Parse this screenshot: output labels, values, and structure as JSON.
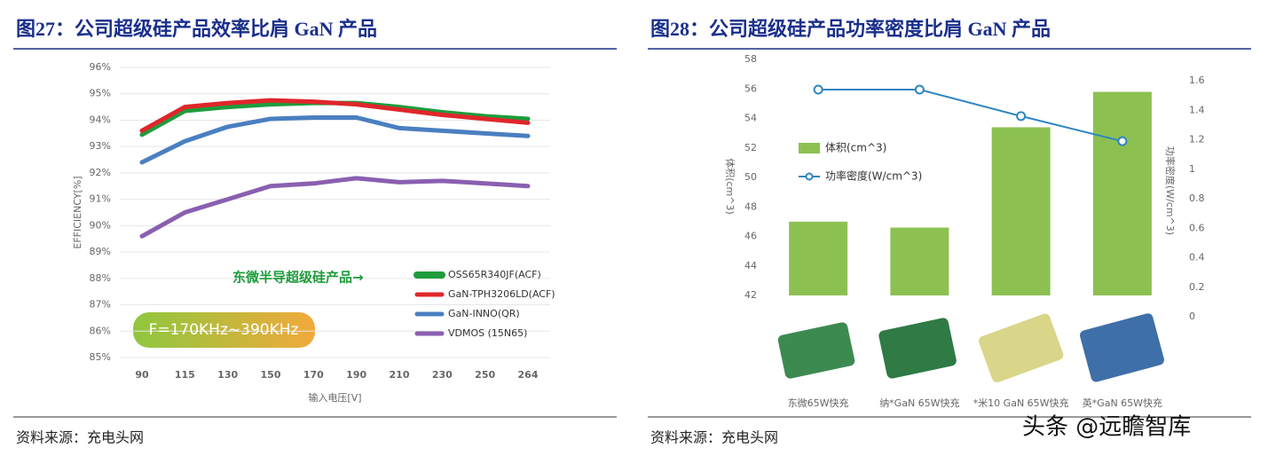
{
  "chart_data": [
    {
      "type": "line",
      "title": "图27：公司超级硅产品效率比肩 GaN 产品",
      "x_label": "输入电压[V]",
      "y_label": "EFFICIENCY[%]",
      "categories": [
        "90",
        "115",
        "130",
        "150",
        "170",
        "190",
        "210",
        "230",
        "250",
        "264"
      ],
      "series": [
        {
          "name": "OSS65R340JF(ACF)",
          "color": "#1e9c3c",
          "values": [
            93.45,
            94.35,
            94.5,
            94.6,
            94.65,
            94.65,
            94.5,
            94.3,
            94.15,
            94.05
          ]
        },
        {
          "name": "GaN-TPH3206LD(ACF)",
          "color": "#e0262b",
          "values": [
            93.6,
            94.5,
            94.65,
            94.75,
            94.7,
            94.6,
            94.4,
            94.2,
            94.05,
            93.9
          ]
        },
        {
          "name": "GaN-INNO(QR)",
          "color": "#4a7fc1",
          "values": [
            92.4,
            93.2,
            93.75,
            94.05,
            94.1,
            94.1,
            93.7,
            93.6,
            93.5,
            93.4
          ]
        },
        {
          "name": "VDMOS (15N65)",
          "color": "#8a5fb0",
          "values": [
            89.6,
            90.5,
            91.0,
            91.5,
            91.6,
            91.8,
            91.65,
            91.7,
            91.6,
            91.5
          ]
        }
      ],
      "ylim": [
        85,
        96
      ],
      "yticks": [
        {
          "value": 85,
          "label": "85%"
        },
        {
          "value": 86,
          "label": "86%"
        },
        {
          "value": 87,
          "label": "87%"
        },
        {
          "value": 88,
          "label": "88%"
        },
        {
          "value": 89,
          "label": "89%"
        },
        {
          "value": 90,
          "label": "90%"
        },
        {
          "value": 91,
          "label": "91%"
        },
        {
          "value": 92,
          "label": "92%"
        },
        {
          "value": 93,
          "label": "93%"
        },
        {
          "value": 94,
          "label": "94%"
        },
        {
          "value": 95,
          "label": "95%"
        },
        {
          "value": 96,
          "label": "96%"
        }
      ],
      "grid": true,
      "annotations": [
        "东微半导超级硅产品→",
        "F=170KHz~390KHz"
      ],
      "source": "资料来源：充电头网"
    },
    {
      "type": "bar",
      "title": "图28：公司超级硅产品功率密度比肩 GaN 产品",
      "y_label": "体积(cm^3)",
      "y2_label": "功率密度(W/cm^3)",
      "categories": [
        "东微65W快充",
        "纳*GaN 65W快充",
        "*米10 GaN 65W快充",
        "英*GaN 65W快充"
      ],
      "series": [
        {
          "name": "体积(cm^3)",
          "color": "#8cc152",
          "values": [
            47,
            46.6,
            53.4,
            55.8
          ]
        },
        {
          "name": "功率密度(W/cm^3)",
          "color": "#2e86c1",
          "type": "line",
          "axis": "y2",
          "values": [
            1.54,
            1.54,
            1.36,
            1.19
          ]
        }
      ],
      "ylim": [
        42,
        58
      ],
      "yticks": [
        42,
        44,
        46,
        48,
        50,
        52,
        54,
        56,
        58
      ],
      "y2lim": [
        0,
        1.6
      ],
      "y2ticks": [
        0,
        0.2,
        0.4,
        0.6,
        0.8,
        1,
        1.2,
        1.4,
        1.6
      ],
      "grid": false,
      "source": "资料来源：充电头网"
    }
  ],
  "watermark": "头条 @远瞻智库"
}
